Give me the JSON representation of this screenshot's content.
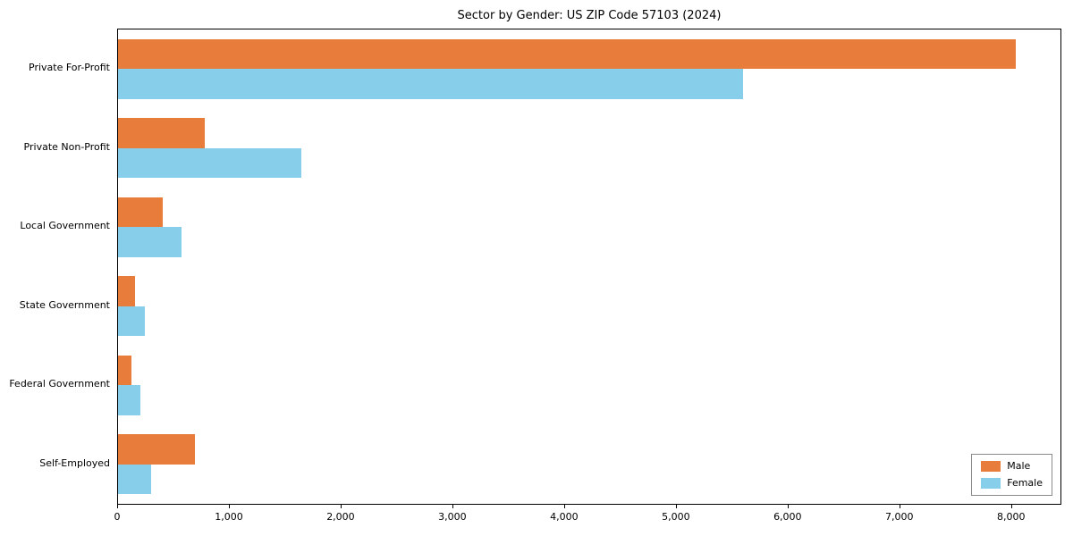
{
  "chart_data": {
    "type": "bar",
    "orientation": "horizontal",
    "title": "Sector by Gender: US ZIP Code 57103 (2024)",
    "categories": [
      "Private For-Profit",
      "Private Non-Profit",
      "Local Government",
      "State Government",
      "Federal Government",
      "Self-Employed"
    ],
    "series": [
      {
        "name": "Male",
        "color": "#e87d3b",
        "values": [
          8050,
          780,
          400,
          150,
          120,
          690
        ]
      },
      {
        "name": "Female",
        "color": "#87ceeb",
        "values": [
          5600,
          1640,
          570,
          240,
          200,
          300
        ]
      }
    ],
    "xlim": [
      0,
      8450
    ],
    "xticks": [
      0,
      1000,
      2000,
      3000,
      4000,
      5000,
      6000,
      7000,
      8000
    ],
    "xtick_labels": [
      "0",
      "1,000",
      "2,000",
      "3,000",
      "4,000",
      "5,000",
      "6,000",
      "7,000",
      "8,000"
    ],
    "grid": false,
    "legend_position": "lower right"
  }
}
